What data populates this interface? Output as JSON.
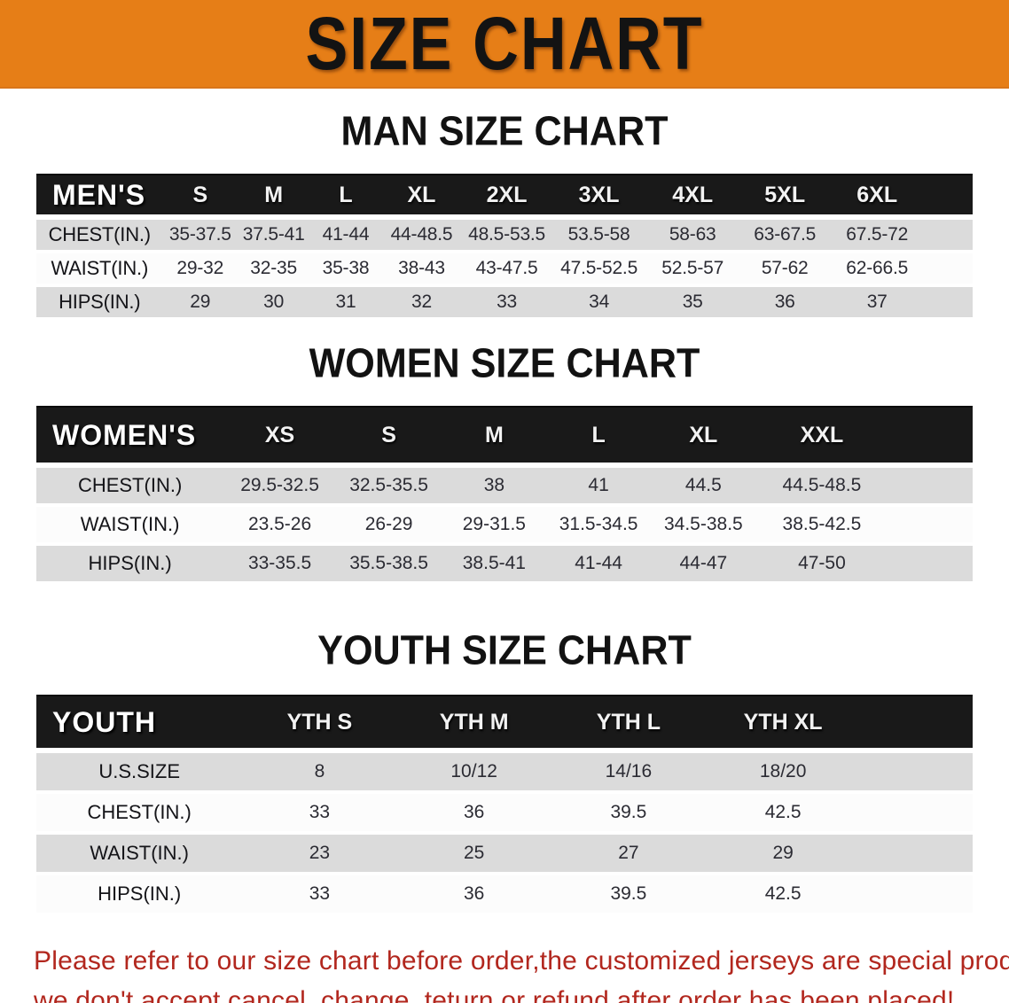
{
  "banner": {
    "title": "SIZE CHART"
  },
  "colors": {
    "banner_orange": "#E67E17",
    "table_header_black": "#191919",
    "row_gray": "#DBDBDB",
    "row_white": "#FCFCFC",
    "note_red": "#B2271E"
  },
  "men": {
    "heading": "MAN SIZE CHART",
    "label": "MEN'S",
    "columns": [
      "S",
      "M",
      "L",
      "XL",
      "2XL",
      "3XL",
      "4XL",
      "5XL",
      "6XL"
    ],
    "rows": [
      {
        "label": "CHEST(IN.)",
        "values": [
          "35-37.5",
          "37.5-41",
          "41-44",
          "44-48.5",
          "48.5-53.5",
          "53.5-58",
          "58-63",
          "63-67.5",
          "67.5-72"
        ]
      },
      {
        "label": "WAIST(IN.)",
        "values": [
          "29-32",
          "32-35",
          "35-38",
          "38-43",
          "43-47.5",
          "47.5-52.5",
          "52.5-57",
          "57-62",
          "62-66.5"
        ]
      },
      {
        "label": "HIPS(IN.)",
        "values": [
          "29",
          "30",
          "31",
          "32",
          "33",
          "34",
          "35",
          "36",
          "37"
        ]
      }
    ]
  },
  "women": {
    "heading": "WOMEN SIZE CHART",
    "label": "WOMEN'S",
    "columns": [
      "XS",
      "S",
      "M",
      "L",
      "XL",
      "XXL"
    ],
    "rows": [
      {
        "label": "CHEST(IN.)",
        "values": [
          "29.5-32.5",
          "32.5-35.5",
          "38",
          "41",
          "44.5",
          "44.5-48.5"
        ]
      },
      {
        "label": "WAIST(IN.)",
        "values": [
          "23.5-26",
          "26-29",
          "29-31.5",
          "31.5-34.5",
          "34.5-38.5",
          "38.5-42.5"
        ]
      },
      {
        "label": "HIPS(IN.)",
        "values": [
          "33-35.5",
          "35.5-38.5",
          "38.5-41",
          "41-44",
          "44-47",
          "47-50"
        ]
      }
    ]
  },
  "youth": {
    "heading": "YOUTH SIZE CHART",
    "label": "YOUTH",
    "columns": [
      "YTH S",
      "YTH M",
      "YTH L",
      "YTH XL"
    ],
    "rows": [
      {
        "label": "U.S.SIZE",
        "values": [
          "8",
          "10/12",
          "14/16",
          "18/20"
        ]
      },
      {
        "label": "CHEST(IN.)",
        "values": [
          "33",
          "36",
          "39.5",
          "42.5"
        ]
      },
      {
        "label": "WAIST(IN.)",
        "values": [
          "23",
          "25",
          "27",
          "29"
        ]
      },
      {
        "label": "HIPS(IN.)",
        "values": [
          "33",
          "36",
          "39.5",
          "42.5"
        ]
      }
    ]
  },
  "footer": {
    "line1": "Please refer to our size chart before order,the customized jerseys are special products,",
    "line2": "we don't accept cancel, change, teturn or refund after order has been placed!"
  }
}
